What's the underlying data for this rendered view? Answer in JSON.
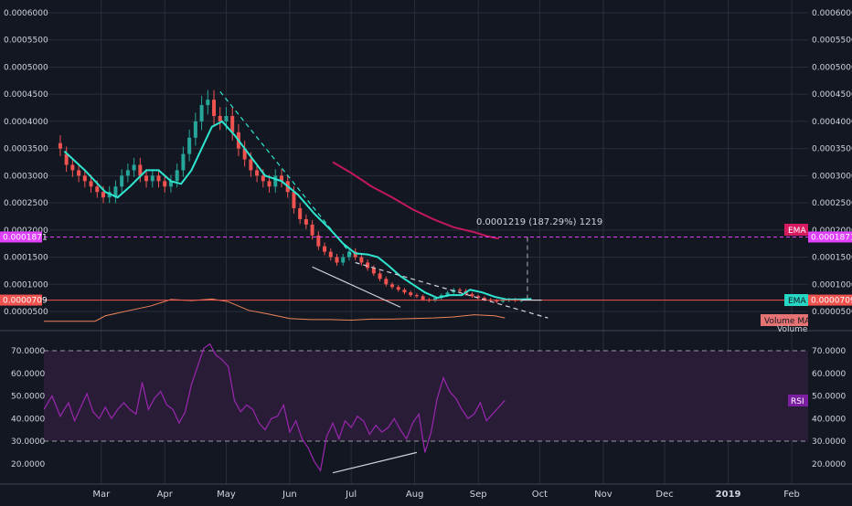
{
  "colors": {
    "background": "#131722",
    "grid": "#2a2e39",
    "axis_text": "#d1d4dc",
    "candle_up": "#26a69a",
    "candle_down": "#ef5350",
    "ema_fast": "#2ee6d0",
    "ema_slow": "#c2185b",
    "volume_ma": "#f0845a",
    "rsi_line": "#9c27b0",
    "rsi_band": "#2b1d3a",
    "price_line": "#ef5350",
    "target_line": "#e040fb",
    "ema_tag": "#26d7c3",
    "ema_tag_pink": "#d81b60",
    "volume_ma_tag": "#e57373",
    "rsi_tag": "#7b1fa2"
  },
  "chart_data": [
    {
      "type": "candlestick",
      "panel": "price",
      "y_ticks": [
        "0.0006000",
        "0.0005500",
        "0.0005000",
        "0.0004500",
        "0.0004000",
        "0.0003500",
        "0.0003000",
        "0.0002500",
        "0.0002000",
        "0.0001500",
        "0.0001000",
        "0.0000500"
      ],
      "y_tick_values": [
        0.0006,
        0.00055,
        0.0005,
        0.00045,
        0.0004,
        0.00035,
        0.0003,
        0.00025,
        0.0002,
        0.00015,
        0.0001,
        5e-05
      ],
      "ylim": [
        2.1e-05,
        0.000608
      ],
      "x_ticks": [
        "Mar",
        "Apr",
        "May",
        "Jun",
        "Jul",
        "Aug",
        "Sep",
        "Oct",
        "Nov",
        "Dec",
        "2019",
        "Feb"
      ],
      "x_tick_days": [
        28,
        59,
        89,
        120,
        150,
        181,
        212,
        242,
        273,
        303,
        334,
        365
      ],
      "xlim": [
        0,
        373
      ],
      "grid": true,
      "price_labels": {
        "current": "0.0000709",
        "target": "0.0001871"
      },
      "current_value": 7.09e-05,
      "target_value": 0.0001871,
      "measure_text": "0.0001219 (187.29%) 1219",
      "ema_fast": {
        "name": "EMA",
        "points": [
          [
            10,
            0.000345
          ],
          [
            20,
            0.00031
          ],
          [
            30,
            0.00027
          ],
          [
            36,
            0.00026
          ],
          [
            42,
            0.00028
          ],
          [
            50,
            0.00031
          ],
          [
            56,
            0.00031
          ],
          [
            62,
            0.00029
          ],
          [
            67,
            0.000285
          ],
          [
            72,
            0.00031
          ],
          [
            77,
            0.00035
          ],
          [
            82,
            0.00039
          ],
          [
            87,
            0.0004
          ],
          [
            93,
            0.000375
          ],
          [
            100,
            0.00034
          ],
          [
            108,
            0.0003
          ],
          [
            116,
            0.00029
          ],
          [
            124,
            0.000265
          ],
          [
            132,
            0.00023
          ],
          [
            140,
            0.0002
          ],
          [
            146,
            0.000175
          ],
          [
            152,
            0.000157
          ],
          [
            158,
            0.000155
          ],
          [
            163,
            0.00015
          ],
          [
            168,
            0.000135
          ],
          [
            174,
            0.000115
          ],
          [
            180,
            0.0001
          ],
          [
            186,
            8.5e-05
          ],
          [
            192,
            7.5e-05
          ],
          [
            198,
            8e-05
          ],
          [
            204,
            8e-05
          ],
          [
            208,
            9e-05
          ],
          [
            214,
            8.5e-05
          ],
          [
            220,
            7.7e-05
          ],
          [
            226,
            7.2e-05
          ],
          [
            232,
            7.2e-05
          ],
          [
            238,
            7.3e-05
          ]
        ]
      },
      "ema_slow": {
        "name": "EMA",
        "points": [
          [
            141,
            0.000325
          ],
          [
            150,
            0.000305
          ],
          [
            160,
            0.00028
          ],
          [
            170,
            0.00026
          ],
          [
            180,
            0.000238
          ],
          [
            190,
            0.00022
          ],
          [
            200,
            0.000205
          ],
          [
            210,
            0.000196
          ],
          [
            216,
            0.000189
          ],
          [
            222,
            0.000184
          ]
        ]
      },
      "candles": [
        [
          8,
          0.00036,
          0.00035
        ],
        [
          11,
          0.00034,
          0.00032
        ],
        [
          14,
          0.00032,
          0.00031
        ],
        [
          17,
          0.00031,
          0.0003
        ],
        [
          20,
          0.0003,
          0.00029
        ],
        [
          23,
          0.00029,
          0.00028
        ],
        [
          26,
          0.00028,
          0.00027
        ],
        [
          29,
          0.00027,
          0.00026
        ],
        [
          32,
          0.00026,
          0.00027
        ],
        [
          35,
          0.00026,
          0.00028
        ],
        [
          38,
          0.00028,
          0.0003
        ],
        [
          41,
          0.0003,
          0.00031
        ],
        [
          44,
          0.00031,
          0.00032
        ],
        [
          47,
          0.00032,
          0.0003
        ],
        [
          50,
          0.0003,
          0.00029
        ],
        [
          53,
          0.00029,
          0.0003
        ],
        [
          56,
          0.0003,
          0.00029
        ],
        [
          59,
          0.00029,
          0.00028
        ],
        [
          62,
          0.00028,
          0.00029
        ],
        [
          65,
          0.00029,
          0.00031
        ],
        [
          68,
          0.00031,
          0.00034
        ],
        [
          71,
          0.00034,
          0.00037
        ],
        [
          74,
          0.00037,
          0.0004
        ],
        [
          77,
          0.0004,
          0.00043
        ],
        [
          80,
          0.00043,
          0.00044
        ],
        [
          83,
          0.00044,
          0.00041
        ],
        [
          86,
          0.00041,
          0.0004
        ],
        [
          89,
          0.0004,
          0.00041
        ],
        [
          92,
          0.00041,
          0.00038
        ],
        [
          95,
          0.00038,
          0.00035
        ],
        [
          98,
          0.00035,
          0.00033
        ],
        [
          101,
          0.00033,
          0.00031
        ],
        [
          104,
          0.00031,
          0.0003
        ],
        [
          107,
          0.0003,
          0.00029
        ],
        [
          110,
          0.00029,
          0.00028
        ],
        [
          113,
          0.00028,
          0.0003
        ],
        [
          116,
          0.0003,
          0.00029
        ],
        [
          119,
          0.00029,
          0.00027
        ],
        [
          122,
          0.00027,
          0.00024
        ],
        [
          125,
          0.00024,
          0.00022
        ],
        [
          128,
          0.00022,
          0.00021
        ],
        [
          131,
          0.00021,
          0.00019
        ],
        [
          134,
          0.00019,
          0.00017
        ],
        [
          137,
          0.00017,
          0.00016
        ],
        [
          140,
          0.00016,
          0.00015
        ],
        [
          143,
          0.00015,
          0.00014
        ],
        [
          146,
          0.00014,
          0.00015
        ],
        [
          149,
          0.00015,
          0.00016
        ],
        [
          152,
          0.00016,
          0.00015
        ],
        [
          155,
          0.00015,
          0.00014
        ],
        [
          158,
          0.00014,
          0.00013
        ],
        [
          161,
          0.00013,
          0.00012
        ],
        [
          164,
          0.00012,
          0.00011
        ],
        [
          167,
          0.00011,
          0.0001
        ],
        [
          170,
          0.0001,
          9.5e-05
        ],
        [
          173,
          9.5e-05,
          9e-05
        ],
        [
          176,
          9e-05,
          8.5e-05
        ],
        [
          179,
          8.5e-05,
          8e-05
        ],
        [
          182,
          8e-05,
          7.8e-05
        ],
        [
          185,
          7.8e-05,
          7.2e-05
        ],
        [
          188,
          7.2e-05,
          7e-05
        ],
        [
          191,
          7e-05,
          7.5e-05
        ],
        [
          194,
          7.5e-05,
          8e-05
        ],
        [
          197,
          8e-05,
          8.5e-05
        ],
        [
          200,
          8.5e-05,
          9e-05
        ],
        [
          203,
          9e-05,
          8.8e-05
        ],
        [
          206,
          8.8e-05,
          8.2e-05
        ],
        [
          209,
          8.2e-05,
          7.8e-05
        ],
        [
          212,
          7.8e-05,
          7.5e-05
        ],
        [
          215,
          7.5e-05,
          7.2e-05
        ],
        [
          218,
          7.2e-05,
          7e-05
        ],
        [
          221,
          7e-05,
          6.8e-05
        ],
        [
          224,
          6.8e-05,
          7e-05
        ],
        [
          227,
          7e-05,
          7.2e-05
        ],
        [
          230,
          7.2e-05,
          7e-05
        ],
        [
          233,
          7e-05,
          7.1e-05
        ]
      ],
      "trendlines": [
        {
          "style": "dashed",
          "color": "#2ee6d0",
          "points": [
            [
              86,
              0.000455
            ],
            [
              150,
              0.000155
            ]
          ]
        },
        {
          "style": "dashed",
          "color": "#d1d4dc",
          "points": [
            [
              152,
              0.00014
            ],
            [
              246,
              3.8e-05
            ]
          ]
        },
        {
          "style": "solid",
          "color": "#d1d4dc",
          "points": [
            [
              131,
              0.000132
            ],
            [
              174,
              5.8e-05
            ]
          ]
        },
        {
          "style": "solid",
          "color": "#d1d4dc",
          "points": [
            [
              233,
              7.09e-05
            ],
            [
              243,
              7.09e-05
            ]
          ]
        },
        {
          "style": "dashed",
          "color": "#9598a1",
          "points": [
            [
              236,
              7.25e-05
            ],
            [
              236,
              0.0001871
            ]
          ]
        }
      ]
    },
    {
      "type": "area",
      "panel": "volume",
      "name": "Volume",
      "ma_name": "Volume MA",
      "ma_points": [
        [
          0,
          3.2e-05
        ],
        [
          25,
          3.2e-05
        ],
        [
          30,
          4.2e-05
        ],
        [
          42,
          5.2e-05
        ],
        [
          52,
          6e-05
        ],
        [
          62,
          7.2e-05
        ],
        [
          72,
          7e-05
        ],
        [
          82,
          7.3e-05
        ],
        [
          90,
          6.8e-05
        ],
        [
          100,
          5.2e-05
        ],
        [
          110,
          4.5e-05
        ],
        [
          120,
          3.7e-05
        ],
        [
          130,
          3.5e-05
        ],
        [
          140,
          3.5e-05
        ],
        [
          150,
          3.4e-05
        ],
        [
          160,
          3.6e-05
        ],
        [
          170,
          3.6e-05
        ],
        [
          180,
          3.7e-05
        ],
        [
          190,
          3.8e-05
        ],
        [
          200,
          4e-05
        ],
        [
          210,
          4.4e-05
        ],
        [
          220,
          4.2e-05
        ],
        [
          225,
          3.8e-05
        ]
      ]
    },
    {
      "type": "line",
      "panel": "rsi",
      "name": "RSI",
      "y_ticks": [
        "70.0000",
        "60.0000",
        "50.0000",
        "40.0000",
        "30.0000",
        "20.0000"
      ],
      "y_tick_values": [
        70,
        60,
        50,
        40,
        30,
        20
      ],
      "ylim": [
        14.8,
        75.8
      ],
      "band": [
        30,
        70
      ],
      "points": [
        [
          0,
          44
        ],
        [
          4,
          50
        ],
        [
          8,
          41
        ],
        [
          12,
          47
        ],
        [
          15,
          39
        ],
        [
          18,
          45
        ],
        [
          21,
          51
        ],
        [
          24,
          43
        ],
        [
          27,
          40
        ],
        [
          30,
          45
        ],
        [
          33,
          40
        ],
        [
          36,
          44
        ],
        [
          39,
          47
        ],
        [
          42,
          44
        ],
        [
          45,
          42
        ],
        [
          48,
          56
        ],
        [
          51,
          44
        ],
        [
          54,
          49
        ],
        [
          57,
          52
        ],
        [
          60,
          46
        ],
        [
          63,
          44
        ],
        [
          66,
          38
        ],
        [
          69,
          43
        ],
        [
          72,
          55
        ],
        [
          75,
          63
        ],
        [
          78,
          71
        ],
        [
          81,
          73
        ],
        [
          84,
          68
        ],
        [
          87,
          66
        ],
        [
          90,
          63
        ],
        [
          93,
          48
        ],
        [
          96,
          43
        ],
        [
          99,
          46
        ],
        [
          102,
          44
        ],
        [
          105,
          38
        ],
        [
          108,
          35
        ],
        [
          111,
          40
        ],
        [
          114,
          41
        ],
        [
          117,
          46
        ],
        [
          120,
          34
        ],
        [
          123,
          39
        ],
        [
          126,
          31
        ],
        [
          129,
          27
        ],
        [
          132,
          21
        ],
        [
          135,
          17
        ],
        [
          138,
          32
        ],
        [
          141,
          38
        ],
        [
          144,
          31
        ],
        [
          147,
          39
        ],
        [
          150,
          36
        ],
        [
          153,
          41
        ],
        [
          156,
          39
        ],
        [
          159,
          33
        ],
        [
          162,
          37
        ],
        [
          165,
          34
        ],
        [
          168,
          36
        ],
        [
          171,
          40
        ],
        [
          174,
          35
        ],
        [
          177,
          31
        ],
        [
          180,
          38
        ],
        [
          183,
          42
        ],
        [
          186,
          25
        ],
        [
          189,
          34
        ],
        [
          192,
          49
        ],
        [
          195,
          58
        ],
        [
          198,
          52
        ],
        [
          201,
          49
        ],
        [
          204,
          44
        ],
        [
          207,
          40
        ],
        [
          210,
          42
        ],
        [
          213,
          47
        ],
        [
          216,
          39
        ],
        [
          219,
          42
        ],
        [
          222,
          45
        ],
        [
          225,
          48
        ]
      ],
      "trendline": [
        [
          141,
          16
        ],
        [
          182,
          25
        ]
      ]
    }
  ],
  "tags": {
    "ema_top": "EMA",
    "ema_bottom": "EMA",
    "volume_ma": "Volume MA",
    "volume": "Volume",
    "rsi": "RSI"
  }
}
